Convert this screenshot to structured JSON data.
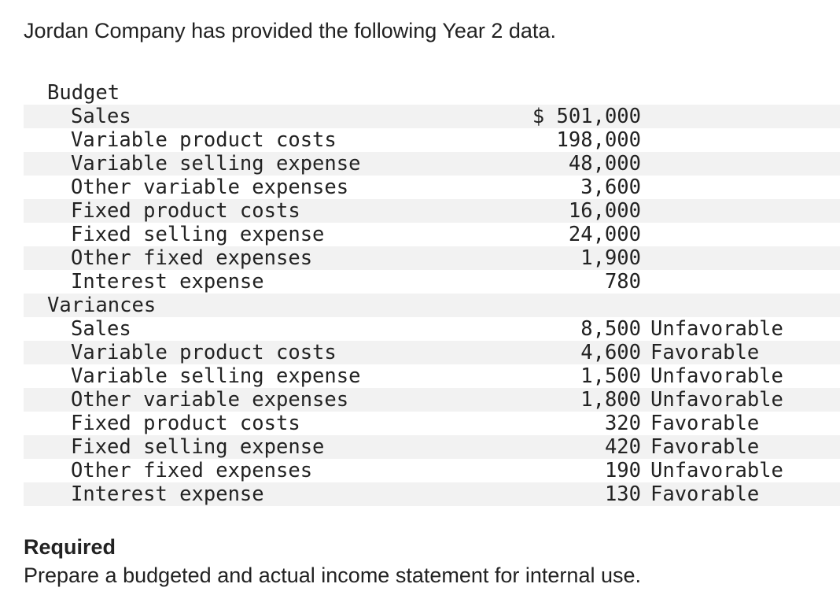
{
  "intro": "Jordan Company has provided the following Year 2 data.",
  "sections": [
    {
      "heading": "Budget",
      "rows": [
        {
          "label": "Sales",
          "amount": "$ 501,000"
        },
        {
          "label": "Variable product costs",
          "amount": "198,000"
        },
        {
          "label": "Variable selling expense",
          "amount": "48,000"
        },
        {
          "label": "Other variable expenses",
          "amount": "3,600"
        },
        {
          "label": "Fixed product costs",
          "amount": "16,000"
        },
        {
          "label": "Fixed selling expense",
          "amount": "24,000"
        },
        {
          "label": "Other fixed expenses",
          "amount": "1,900"
        },
        {
          "label": "Interest expense",
          "amount": "780"
        }
      ]
    },
    {
      "heading": "Variances",
      "rows": [
        {
          "label": "Sales",
          "amount": "8,500",
          "status": "Unfavorable"
        },
        {
          "label": "Variable product costs",
          "amount": "4,600",
          "status": "Favorable"
        },
        {
          "label": "Variable selling expense",
          "amount": "1,500",
          "status": "Unfavorable"
        },
        {
          "label": "Other variable expenses",
          "amount": "1,800",
          "status": "Unfavorable"
        },
        {
          "label": "Fixed product costs",
          "amount": "320",
          "status": "Favorable"
        },
        {
          "label": "Fixed selling expense",
          "amount": "420",
          "status": "Favorable"
        },
        {
          "label": "Other fixed expenses",
          "amount": "190",
          "status": "Unfavorable"
        },
        {
          "label": "Interest expense",
          "amount": "130",
          "status": "Favorable"
        }
      ]
    }
  ],
  "required": {
    "heading": "Required",
    "text": "Prepare a budgeted and actual income statement for internal use."
  }
}
